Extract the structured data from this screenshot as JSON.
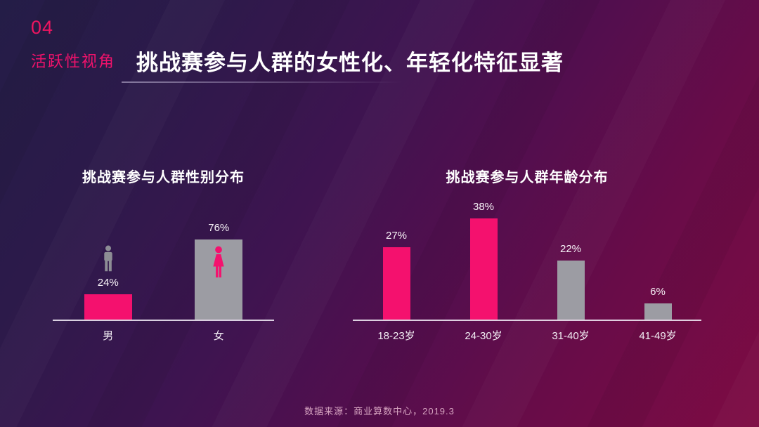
{
  "page": {
    "section_number": "04",
    "section_label": "活跃性视角",
    "title": "挑战赛参与人群的女性化、年轻化特征显著",
    "footer": "数据来源：商业算数中心，2019.3"
  },
  "colors": {
    "accent_pink": "#F4116E",
    "bar_gray": "#9C9CA3",
    "male_icon_gray": "#8D8D95",
    "female_icon_pink": "#F4116E",
    "title_white": "#FFFFFF",
    "label_pink": "#F0126B",
    "footer_pink": "#D8A6C2",
    "background_top_left": "#241D47",
    "background_bottom_right": "#7E0B43"
  },
  "chart_data": [
    {
      "type": "bar",
      "title": "挑战赛参与人群性别分布",
      "categories": [
        "男",
        "女"
      ],
      "values": [
        24,
        76
      ],
      "data_labels": [
        "24%",
        "76%"
      ],
      "unit": "%",
      "bar_colors": [
        "#F4116E",
        "#9C9CA3"
      ],
      "icons": [
        {
          "name": "male-icon",
          "position": "above",
          "color": "#8D8D95"
        },
        {
          "name": "female-icon",
          "position": "inside",
          "color": "#F4116E"
        }
      ],
      "ylim": [
        0,
        100
      ],
      "grid": false,
      "legend": "none",
      "value_labels_position": "above-bar"
    },
    {
      "type": "bar",
      "title": "挑战赛参与人群年龄分布",
      "categories": [
        "18-23岁",
        "24-30岁",
        "31-40岁",
        "41-49岁"
      ],
      "values": [
        27,
        38,
        22,
        6
      ],
      "data_labels": [
        "27%",
        "38%",
        "22%",
        "6%"
      ],
      "unit": "%",
      "bar_colors": [
        "#F4116E",
        "#F4116E",
        "#9C9CA3",
        "#9C9CA3"
      ],
      "ylim": [
        0,
        40
      ],
      "grid": false,
      "legend": "none",
      "value_labels_position": "above-bar"
    }
  ]
}
